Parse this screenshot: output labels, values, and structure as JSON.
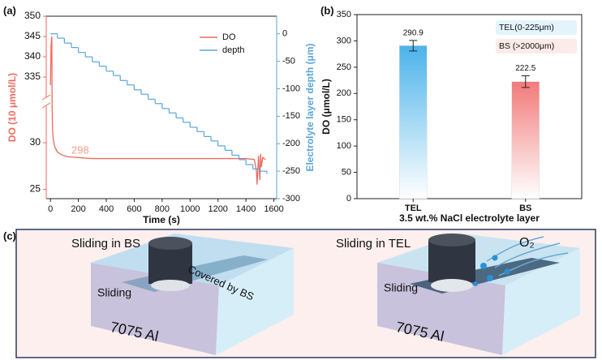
{
  "panel_labels": [
    "(a)",
    "(b)",
    "(c)"
  ],
  "chart_data": [
    {
      "type": "line",
      "xlabel": "Time (s)",
      "ylabel": "DO (10 μmol/L)",
      "y2label": "Electrolyte layer depth (μm)",
      "annotation": "298",
      "xlim": [
        -30,
        1620
      ],
      "xticks": [
        0,
        200,
        400,
        600,
        800,
        1000,
        1200,
        1400,
        1600
      ],
      "ylim": [
        24,
        350
      ],
      "ybreak": [
        34,
        330
      ],
      "yticks": [
        25,
        30,
        335,
        340,
        345,
        350
      ],
      "y2lim": [
        -300,
        32
      ],
      "y2ticks": [
        0,
        -50,
        -100,
        -150,
        -200,
        -250,
        -300
      ],
      "legend": "upper right",
      "series": [
        {
          "name": "DO",
          "color": "#ee6a5e",
          "x": [
            0,
            5,
            10,
            12,
            15,
            20,
            30,
            50,
            80,
            120,
            200,
            300,
            500,
            800,
            1100,
            1400,
            1460,
            1475,
            1480,
            1490,
            1500,
            1505,
            1510,
            1520,
            1540
          ],
          "values": [
            333,
            343,
            345,
            34,
            31.5,
            30.4,
            29.6,
            29.0,
            28.7,
            28.5,
            28.4,
            28.3,
            28.3,
            28.3,
            28.3,
            28.3,
            28.2,
            27.0,
            25.5,
            28.6,
            26.0,
            28.8,
            27.4,
            28.4,
            28.2
          ]
        },
        {
          "name": "depth",
          "color": "#5aa5dc",
          "axis": "y2",
          "step": "post",
          "x": [
            0,
            50,
            100,
            150,
            200,
            250,
            300,
            350,
            400,
            450,
            500,
            550,
            600,
            650,
            700,
            750,
            800,
            850,
            900,
            950,
            1000,
            1050,
            1100,
            1150,
            1200,
            1250,
            1300,
            1350,
            1400,
            1450,
            1500,
            1550
          ],
          "values": [
            0,
            -8,
            -17,
            -25,
            -34,
            -42,
            -51,
            -59,
            -68,
            -76,
            -85,
            -93,
            -102,
            -110,
            -119,
            -127,
            -136,
            -144,
            -153,
            -161,
            -170,
            -178,
            -187,
            -195,
            -204,
            -212,
            -221,
            -229,
            -238,
            -246,
            -250,
            -255
          ]
        }
      ]
    },
    {
      "type": "bar",
      "xlabel": "3.5 wt.% NaCl electrolyte layer",
      "ylabel": "DO (μmol/L)",
      "categories": [
        "TEL",
        "BS"
      ],
      "values": [
        290.9,
        222.5
      ],
      "errors": [
        10,
        11
      ],
      "colors": [
        "#4cb3ea",
        "#f27a7a"
      ],
      "legend_entries": [
        "TEL(0-225μm)",
        "BS (>2000μm)"
      ],
      "legend": "upper right",
      "ylim": [
        0,
        350
      ],
      "yticks": [
        0,
        50,
        100,
        150,
        200,
        250,
        300,
        350
      ]
    }
  ],
  "illustration": {
    "left": {
      "title": "Sliding in BS",
      "cover": "Covered by BS",
      "motion": "Sliding",
      "material": "7075 Al"
    },
    "right": {
      "title": "Sliding in TEL",
      "motion": "Sliding",
      "material": "7075 Al",
      "gas": "O₂"
    }
  }
}
